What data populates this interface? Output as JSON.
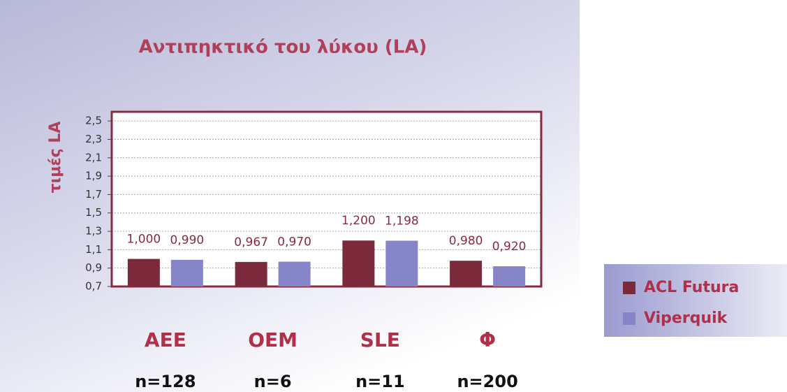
{
  "chart_data": {
    "type": "bar",
    "title": "Αντιπηκτικό του λύκου (LA)",
    "ylabel": "τιμές LA",
    "categories": [
      "AEE",
      "OEM",
      "SLE",
      "Φ"
    ],
    "annotations": [
      "n=128",
      "n=6",
      "n=11",
      "n=200"
    ],
    "series": [
      {
        "name": "ACL Futura",
        "color": "#7a2a3a",
        "values": [
          1.0,
          0.967,
          1.2,
          0.98
        ],
        "value_labels": [
          "1,000",
          "0,967",
          "1,200",
          "0,980"
        ]
      },
      {
        "name": "Viperquik",
        "color": "#8585c8",
        "values": [
          0.99,
          0.97,
          1.198,
          0.92
        ],
        "value_labels": [
          "0,990",
          "0,970",
          "1,198",
          "0,920"
        ]
      }
    ],
    "ylim": [
      0.7,
      2.6
    ],
    "yticks": [
      {
        "value": 0.7,
        "label": "0,7"
      },
      {
        "value": 0.9,
        "label": "0,9"
      },
      {
        "value": 1.1,
        "label": "1,1"
      },
      {
        "value": 1.3,
        "label": "1,3"
      },
      {
        "value": 1.5,
        "label": "1,5"
      },
      {
        "value": 1.7,
        "label": "1,7"
      },
      {
        "value": 1.9,
        "label": "1,9"
      },
      {
        "value": 2.1,
        "label": "2,1"
      },
      {
        "value": 2.3,
        "label": "2,3"
      },
      {
        "value": 2.5,
        "label": "2,5"
      }
    ],
    "grid": true,
    "legend": "right"
  }
}
